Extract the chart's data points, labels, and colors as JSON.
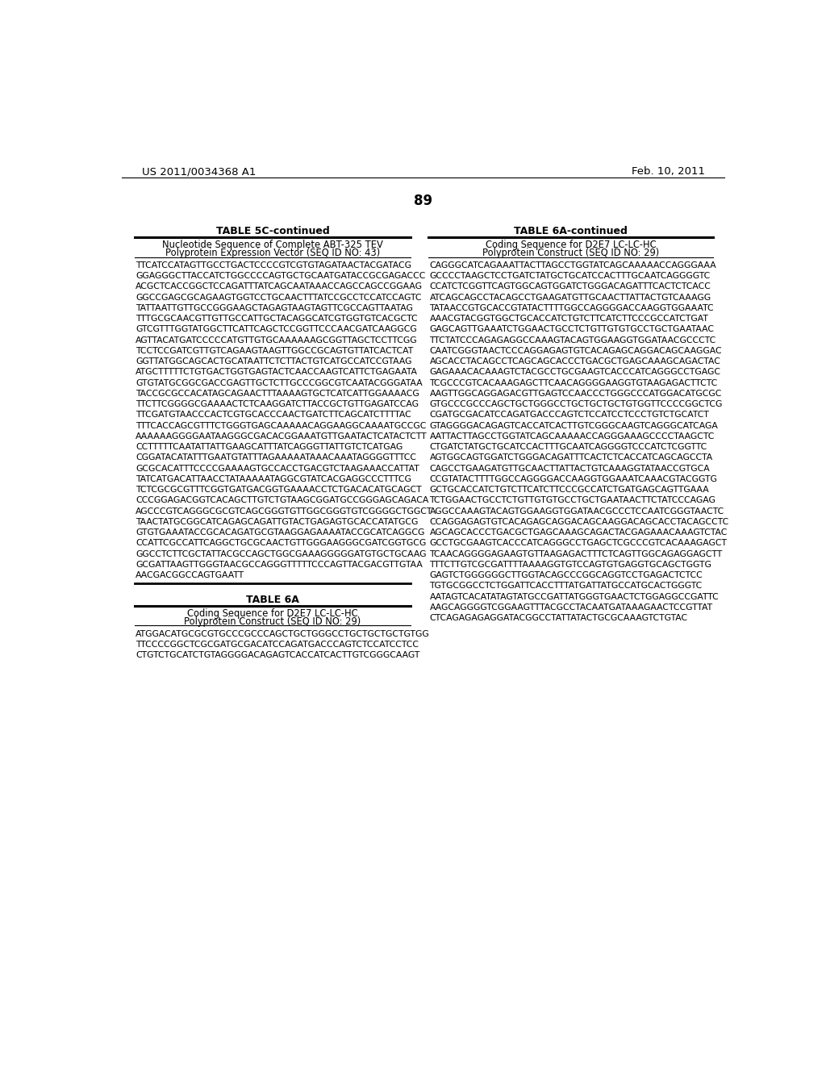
{
  "page_number": "89",
  "patent_left": "US 2011/0034368 A1",
  "patent_right": "Feb. 10, 2011",
  "background_color": "#ffffff",
  "table_left": {
    "title": "TABLE 5C-continued",
    "header_line1": "Nucleotide Sequence of Complete ABT-325 TEV",
    "header_line2": "Polyprotein Expression Vector (SEQ ID NO: 43)",
    "sequences": [
      "TTCATCCATAGTTGCCTGACTCCCCGTCGTGTAGATAACTACGATACG",
      "GGAGGGCTTACCATCTGGCCCCAGTGCTGCAATGATACCGCGAGACCC",
      "ACGCTCACCGGCTCCAGATTTATCAGCAATAAACCAGCCAGCCGGAAG",
      "GGCCGAGCGCAGAAGTGGTCCTGCAACTTTATCCGCCTCCATCCAGTC",
      "TATTAATTGTTGCCGGGAAGCTAGAGTAAGTAGTTCGCCAGTTAATAG",
      "TTTGCGCAACGTTGTTGCCATTGCTACAGGCATCGTGGTGTCACGCTC",
      "GTCGTTTGGTATGGCTTCATTCAGCTCCGGTTCCCAACGATCAAGGCG",
      "AGTTACATGATCCCCCATGTTGTGCAAAAAAGCGGTTAGCTCCTTCGG",
      "TCCTCCGATCGTTGTCAGAAGTAAGTTGGCCGCAGTGTTATCACTCAT",
      "GGTTATGGCAGCACTGCATAATTCTCTTACTGTCATGCCATCCGTAAG",
      "ATGCTTTTTCTGTGACTGGTGAGTACTCAACCAAGTCATTCTGAGAATA",
      "GTGTATGCGGCGACCGAGTTGCTCTTGCCCGGCGTCAATACGGGATAA",
      "TACCGCGCCACATAGCAGAACTTTAAAAGTGCTCATCATTGGAAAACG",
      "TTCTTCGGGGCGAAAACTCTCAAGGATCTTACCGCTGTTGAGATCCAG",
      "TTCGATGTAACCCACTCGTGCACCCAACTGATCTTCAGCATCTTTTAC",
      "TTTCACCAGCGTTTCTGGGTGAGCAAAAACAGGAAGGCAAAATGCCGC",
      "AAAAAAGGGGAATAAGGGCGACACGGAAATGTTGAATACTCATACTCTT",
      "CCTTTTTCAATATTATTGAAGCATTTATCAGGGTTATTGTCTCATGAG",
      "CGGATACATATTTGAATGTATTTAGAAAAATAAACAAATAGGGGTTTCC",
      "GCGCACATTTCCCCGAAAAGTGCCACCTGACGTCTAAGAAACCATTAT",
      "TATCATGACATTAACCTATAAAAATAGGCGTATCACGAGGCCCTTTCG",
      "TCTCGCGCGTTTCGGTGATGACGGTGAAAACCTCTGACACATGCAGCT",
      "CCCGGAGACGGTCACAGCTTGTCTGTAAGCGGATGCCGGGAGCAGACA",
      "AGCCCGTCAGGGCGCGTCAGCGGGTGTTGGCGGGTGTCGGGGCTGGCT",
      "TAACTATGCGGCATCAGAGCAGATTGTACTGAGAGTGCACCATATGCG",
      "GTGTGAAATACCGCACAGATGCGTAAGGAGAAAATACCGCATCAGGCG",
      "CCATTCGCCATTCAGGCTGCGCAACTGTTGGGAAGGGCGATCGGTGCG",
      "GGCCTCTTCGCTATTACGCCAGCTGGCGAAAGGGGGATGTGCTGCAAG",
      "GCGATTAAGTTGGGTAACGCCAGGGTTTTTCCCAGTTACGACGTTGTAA",
      "AACGACGGCCAGTGAATT"
    ]
  },
  "table_left2": {
    "title": "TABLE 6A",
    "header_line1": "Coding Sequence for D2E7 LC-LC-HC",
    "header_line2": "Polyprotein Construct (SEQ ID NO: 29)",
    "sequences": [
      "ATGGACATGCGCGTGCCCGCCCAGCTGCTGGGCCTGCTGCTGCTGTGG",
      "TTCCCCGGCTCGCGATGCGACATCCAGATGACCCAGTCTCCATCCTCC",
      "CTGTCTGCATCTGTAGGGGACAGAGTCACCATCACTTGTCGGGCAAGT"
    ]
  },
  "table_right": {
    "title": "TABLE 6A-continued",
    "header_line1": "Coding Sequence for D2E7 LC-LC-HC",
    "header_line2": "Polyprotein Construct (SEQ ID NO: 29)",
    "sequences": [
      "CAGGGCATCAGAAATTACTTAGCCTGGTATCAGCAAAAACCAGGGAAA",
      "GCCCCTAAGCTCCTGATCTATGCTGCATCCACTTTGCAATCAGGGGTC",
      "CCATCTCGGTTCAGTGGCAGTGGATCTGGGACAGATTTCACTCTCACC",
      "ATCAGCAGCCTACAGCCTGAAGATGTTGCAACTTATTACTGTCAAAGG",
      "TATAACCGTGCACCGTATACTTTTGGCCAGGGGACCAAGGTGGAAATC",
      "AAACGTACGGTGGCTGCACCATCTGTCTTCATCTTCCCGCCATCTGAT",
      "GAGCAGTTGAAATCTGGAACTGCCTCTGTTGTGTGCCTGCTGAATAAC",
      "TTCTATCCCAGAGAGGCCAAAGTACAGTGGAAGGTGGATAACGCCCTC",
      "CAATCGGGTAACTCCCAGGAGAGTGTCACAGAGCAGGACAGCAAGGAC",
      "AGCACCTACAGCCTCAGCAGCACCCTGACGCTGAGCAAAGCAGACTAC",
      "GAGAAACACAAAGTCTACGCCTGCGAAGTCACCCATCAGGGCCTGAGC",
      "TCGCCCGTCACAAAGAGCTTCAACAGGGGAAGGTGTAAGAGACTTCTC",
      "AAGTTGGCAGGAGACGTTGAGTCCAACCCTGGGCCCATGGACATGCGC",
      "GTGCCCGCCCAGCTGCTGGGCCTGCTGCTGCTGTGGTTCCCCGGCTCG",
      "CGATGCGACATCCAGATGACCCAGTCTCCATCCTCCCTGTCTGCATCT",
      "GTAGGGGACAGAGTCACCATCACTTGTCGGGCAAGTCAGGGCATCAGA",
      "AATTACTTAGCCTGGTATCAGCAAAAACCAGGGAAAGCCCCTAAGCTC",
      "CTGATCTATGCTGCATCCACTTTGCAATCAGGGGTCCCATCTCGGTTC",
      "AGTGGCAGTGGATCTGGGACAGATTTCACTCTCACCATCAGCAGCCTA",
      "CAGCCTGAAGATGTTGCAACTTATTACTGTCAAAGGTATAACCGTGCA",
      "CCGTATACTTTTGGCCAGGGGACCAAGGTGGAAATCAAACGTACGGTG",
      "GCTGCACCATCTGTCTTCATCTTCCCGCCATCTGATGAGCAGTTGAAA",
      "TCTGGAACTGCCTCTGTTGTGTGCCTGCTGAATAACTTCTATCCCAGAG",
      "AGGCCAAAGTACAGTGGAAGGTGGATAACGCCCTCCAATCGGGTAACTC",
      "CCAGGAGAGTGTCACAGAGCAGGACAGCAAGGACAGCACCTACAGCCTC",
      "AGCAGCACCCTGACGCTGAGCAAAGCAGACTACGAGAAACAAAGTCTAC",
      "GCCTGCGAAGTCACCCATCAGGGCCTGAGCTCGCCCGTCACAAAGAGCT",
      "TCAACAGGGGAGAAGTGTTAAGAGACTTTCTCAGTTGGCAGAGGAGCTT",
      "TTTCTTGTCGCGATTTTAAAAGGTGTCCAGTGTGAGGTGCAGCTGGTG",
      "GAGTCTGGGGGGCTTGGTACAGCCCGGCAGGTCCTGAGACTCTCC",
      "TGTGCGGCCTCTGGATTCACCTTTATGATTATGCCATGCACTGGGTC",
      "AATAGTCACATATAGTATGCCGATTATGGGTGAACTCTGGAGGCCGATTC",
      "AAGCAGGGGTCGGAAGTTTACGCCTACAATGATAAAGAACTCCGTTAT",
      "CTCAGAGAGAGGATACGGCCTATTATACTGCGCAAAGTCTGTAC"
    ]
  }
}
